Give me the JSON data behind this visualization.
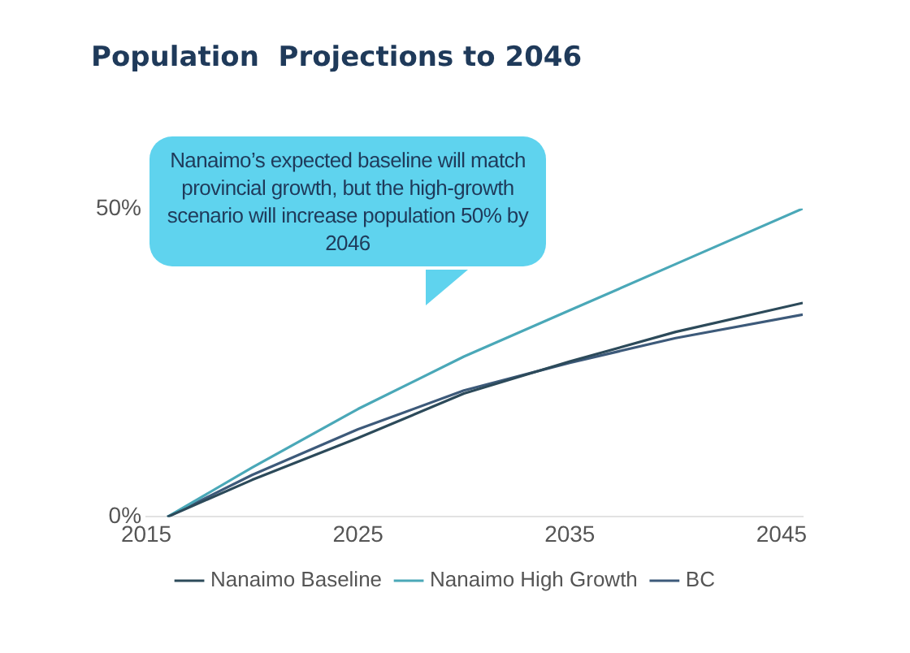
{
  "chart_data": {
    "type": "line",
    "title": "Population  Projections to 2046",
    "annotations": [
      "Nanaimo’s expected baseline will match provincial growth, but the high-growth scenario will increase population 50% by 2046"
    ],
    "x": [
      2016,
      2020,
      2025,
      2030,
      2035,
      2040,
      2046
    ],
    "series": [
      {
        "name": "Nanaimo Baseline",
        "color": "#2c4a5a",
        "values": [
          0,
          6,
          12.8,
          20,
          25.2,
          30,
          34.7
        ]
      },
      {
        "name": "Nanaimo High Growth",
        "color": "#4aa8b8",
        "values": [
          0,
          8,
          17.5,
          26,
          33.5,
          41,
          50
        ]
      },
      {
        "name": "BC",
        "color": "#3d5a7a",
        "values": [
          0,
          6.8,
          14.2,
          20.5,
          25,
          29,
          32.8
        ]
      }
    ],
    "xlim": [
      2015,
      2046
    ],
    "xticks": [
      2015,
      2025,
      2035,
      2045
    ],
    "ylim": [
      0,
      50
    ],
    "yticks": [
      {
        "value": 0,
        "label": "0%"
      },
      {
        "value": 50,
        "label": "50%"
      }
    ],
    "grid": false,
    "legend": "bottom",
    "marker": "none",
    "line_style": "solid"
  }
}
